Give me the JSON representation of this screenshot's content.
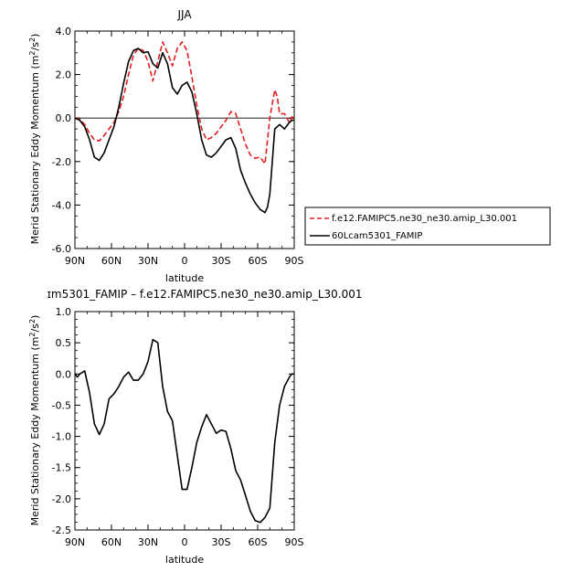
{
  "chart_data": [
    {
      "type": "line",
      "title": "JJA",
      "xlabel": "latitude",
      "ylabel": "Merid Stationary Eddy Momentum",
      "ylabel_unit_base": "m",
      "ylabel_unit_sup1": "2",
      "ylabel_unit_mid": "/s",
      "ylabel_unit_sup2": "2",
      "xlim": [
        90,
        -90
      ],
      "ylim": [
        -6.0,
        4.0
      ],
      "x_ticks": [
        {
          "value": 90,
          "label": "90N"
        },
        {
          "value": 60,
          "label": "60N"
        },
        {
          "value": 30,
          "label": "30N"
        },
        {
          "value": 0,
          "label": "0"
        },
        {
          "value": -30,
          "label": "30S"
        },
        {
          "value": -60,
          "label": "60S"
        },
        {
          "value": -90,
          "label": "90S"
        }
      ],
      "y_ticks": [
        {
          "value": 4.0,
          "label": "4.0"
        },
        {
          "value": 2.0,
          "label": "2.0"
        },
        {
          "value": 0.0,
          "label": "0.0"
        },
        {
          "value": -2.0,
          "label": "-2.0"
        },
        {
          "value": -4.0,
          "label": "-4.0"
        },
        {
          "value": -6.0,
          "label": "-6.0"
        }
      ],
      "zero_line": true,
      "legend_position": "right",
      "series": [
        {
          "name": "f.e12.FAMIPC5.ne30_ne30.amip_L30.001",
          "color": "#e02020",
          "dash": "dashed",
          "x": [
            90,
            86,
            82,
            78,
            74,
            70,
            66,
            62,
            58,
            54,
            50,
            46,
            42,
            38,
            34,
            30,
            26,
            22,
            18,
            14,
            10,
            6,
            2,
            -2,
            -6,
            -10,
            -14,
            -18,
            -22,
            -26,
            -30,
            -34,
            -38,
            -42,
            -46,
            -50,
            -54,
            -58,
            -62,
            -66,
            -70,
            -74,
            -76,
            -78,
            -82,
            -86,
            -88,
            -90
          ],
          "values": [
            0.0,
            -0.05,
            -0.3,
            -0.7,
            -1.0,
            -1.05,
            -0.8,
            -0.5,
            -0.2,
            0.3,
            1.0,
            2.0,
            2.9,
            3.2,
            3.1,
            2.6,
            1.7,
            2.6,
            3.5,
            3.0,
            2.4,
            3.2,
            3.5,
            3.1,
            1.9,
            0.6,
            -0.5,
            -1.0,
            -0.9,
            -0.7,
            -0.4,
            -0.1,
            0.3,
            0.2,
            -0.5,
            -1.2,
            -1.7,
            -1.85,
            -1.8,
            -2.1,
            0.0,
            1.3,
            1.0,
            0.2,
            0.2,
            -0.2,
            0.05,
            0.0
          ]
        },
        {
          "name": "60Lcam5301_FAMIP",
          "color": "#000000",
          "dash": "solid",
          "x": [
            90,
            86,
            82,
            78,
            74,
            70,
            66,
            62,
            58,
            54,
            50,
            46,
            42,
            38,
            34,
            30,
            26,
            22,
            18,
            14,
            10,
            6,
            2,
            -2,
            -6,
            -10,
            -14,
            -18,
            -22,
            -26,
            -30,
            -34,
            -38,
            -42,
            -46,
            -50,
            -54,
            -58,
            -62,
            -66,
            -68,
            -70,
            -74,
            -78,
            -82,
            -86,
            -88,
            -90
          ],
          "values": [
            0.0,
            -0.1,
            -0.4,
            -1.0,
            -1.8,
            -1.95,
            -1.6,
            -1.0,
            -0.4,
            0.5,
            1.6,
            2.6,
            3.1,
            3.2,
            3.0,
            3.05,
            2.5,
            2.3,
            3.0,
            2.5,
            1.4,
            1.1,
            1.5,
            1.65,
            1.2,
            0.2,
            -1.0,
            -1.7,
            -1.8,
            -1.6,
            -1.3,
            -1.0,
            -0.9,
            -1.4,
            -2.4,
            -3.0,
            -3.5,
            -3.9,
            -4.2,
            -4.35,
            -4.1,
            -3.5,
            -0.5,
            -0.3,
            -0.5,
            -0.2,
            -0.1,
            -0.1
          ]
        }
      ]
    },
    {
      "type": "line",
      "title": "ɪm5301_FAMIP – f.e12.FAMIPC5.ne30_ne30.amip_L30.001",
      "xlabel": "latitude",
      "ylabel": "Merid Stationary Eddy Momentum",
      "ylabel_unit_base": "m",
      "ylabel_unit_sup1": "2",
      "ylabel_unit_mid": "/s",
      "ylabel_unit_sup2": "2",
      "xlim": [
        90,
        -90
      ],
      "ylim": [
        -2.5,
        1.0
      ],
      "x_ticks": [
        {
          "value": 90,
          "label": "90N"
        },
        {
          "value": 60,
          "label": "60N"
        },
        {
          "value": 30,
          "label": "30N"
        },
        {
          "value": 0,
          "label": "0"
        },
        {
          "value": -30,
          "label": "30S"
        },
        {
          "value": -60,
          "label": "60S"
        },
        {
          "value": -90,
          "label": "90S"
        }
      ],
      "y_ticks": [
        {
          "value": 1.0,
          "label": "1.0"
        },
        {
          "value": 0.5,
          "label": "0.5"
        },
        {
          "value": 0.0,
          "label": "0.0"
        },
        {
          "value": -0.5,
          "label": "-0.5"
        },
        {
          "value": -1.0,
          "label": "-1.0"
        },
        {
          "value": -1.5,
          "label": "-1.5"
        },
        {
          "value": -2.0,
          "label": "-2.0"
        },
        {
          "value": -2.5,
          "label": "-2.5"
        }
      ],
      "series": [
        {
          "name": "",
          "color": "#000000",
          "dash": "solid",
          "x": [
            90,
            88,
            86,
            82,
            78,
            74,
            70,
            66,
            62,
            58,
            54,
            50,
            46,
            42,
            38,
            34,
            30,
            26,
            22,
            18,
            14,
            10,
            6,
            2,
            -2,
            -6,
            -10,
            -14,
            -18,
            -22,
            -26,
            -30,
            -34,
            -38,
            -42,
            -46,
            -50,
            -54,
            -58,
            -62,
            -66,
            -70,
            -74,
            -78,
            -82,
            -86,
            -88,
            -90
          ],
          "values": [
            0.0,
            -0.05,
            0.0,
            0.05,
            -0.3,
            -0.8,
            -0.97,
            -0.8,
            -0.4,
            -0.32,
            -0.2,
            -0.05,
            0.03,
            -0.1,
            -0.1,
            0.0,
            0.2,
            0.55,
            0.5,
            -0.2,
            -0.6,
            -0.75,
            -1.3,
            -1.85,
            -1.85,
            -1.5,
            -1.1,
            -0.85,
            -0.65,
            -0.8,
            -0.95,
            -0.9,
            -0.92,
            -1.2,
            -1.55,
            -1.7,
            -1.95,
            -2.2,
            -2.35,
            -2.38,
            -2.3,
            -2.15,
            -1.1,
            -0.5,
            -0.2,
            -0.05,
            0.0,
            0.0
          ]
        }
      ]
    }
  ]
}
